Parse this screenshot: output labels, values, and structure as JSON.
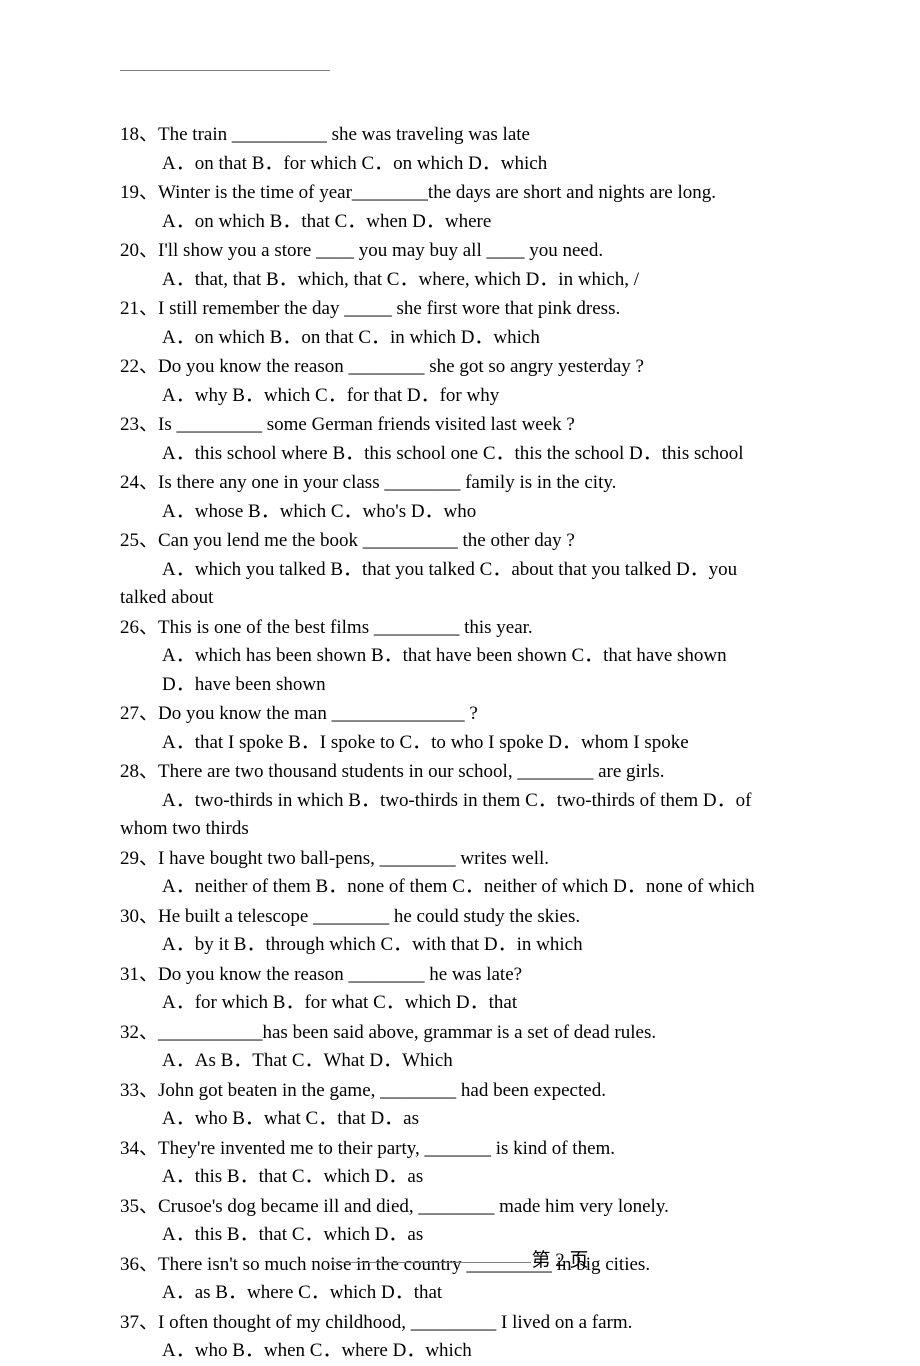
{
  "page_number_label": "第 2 页",
  "questions": [
    {
      "num": "18",
      "stem": "The train __________ she was traveling was late",
      "opts": "A．on that         B．for which     C．on which            D．which"
    },
    {
      "num": "19",
      "stem": "Winter is the time of year________the days are short and nights are long.",
      "opts": "A．on which          B．that           C．when         D．where"
    },
    {
      "num": "20",
      "stem": "I'll show you a store ____ you may buy all ____ you need.",
      "opts": "A．that, that      B．which, that        C．where, which          D．in which, /"
    },
    {
      "num": "21",
      "stem": "I still remember the day _____ she first wore that pink dress.",
      "opts": "A．on which          B．on that         C．in which         D．which"
    },
    {
      "num": "22",
      "stem": "Do you know the reason ________ she got so angry yesterday ?",
      "opts": "A．why           B．which         C．for that        D．for why"
    },
    {
      "num": "23",
      "stem": "Is _________ some German friends visited last week ?",
      "opts": "A．this school where      B．this school one    C．this the school    D．this school"
    },
    {
      "num": "24",
      "stem": "Is there any one in your class ________ family is in the city.",
      "opts": "A．whose          B．which         C．who's          D．who"
    },
    {
      "num": "25",
      "stem": "Can you lend me the book __________ the other day ?",
      "opts": "A．which you talked      B．that you talked   C．about that you talked     D．you",
      "wrap": "talked about"
    },
    {
      "num": "26",
      "stem": "This is one of the best films _________ this year.",
      "opts": "A．which has been shown      B．that have been shown    C．that have shown",
      "opts2": "D．have been shown"
    },
    {
      "num": "27",
      "stem": "Do you know the man ______________ ?",
      "opts": "A．that I spoke   B．I spoke to    C．to who I spoke      D．whom I spoke"
    },
    {
      "num": "28",
      "stem": "There are two thousand students in our school, ________ are girls.",
      "opts": "A．two-thirds in which    B．two-thirds in them    C．two-thirds of them      D．of",
      "wrap": "whom two thirds"
    },
    {
      "num": "29",
      "stem": "I have bought two ball-pens, ________ writes well.",
      "opts": "A．neither of them       B．none of them    C．neither of which D．none of which"
    },
    {
      "num": "30",
      "stem": "He built a telescope ________ he could study the skies.",
      "opts": "A．by it          B．through which          C．with that       D．in which"
    },
    {
      "num": "31",
      "stem": "Do you know the reason ________ he was late?",
      "opts": "A．for which     B．for what       C．which          D．that"
    },
    {
      "num": "32",
      "stem": "___________has been said above, grammar is a set of dead rules.",
      "opts": "A．As              B．That       C．What          D．Which"
    },
    {
      "num": "33",
      "stem": "John got beaten in the game, ________ had been expected.",
      "opts": "A．who            B．what           C．that              D．as"
    },
    {
      "num": "34",
      "stem": "They're invented me to their party, _______ is kind of them.",
      "opts": "A．this              B．that              C．which         D．as"
    },
    {
      "num": "35",
      "stem": "Crusoe's dog became ill and died, ________ made him very lonely.",
      "opts": "A．this              B．that              C．which         D．as"
    },
    {
      "num": "36",
      "stem": "There isn't so much noise in the country _________ in big cities.",
      "opts": "A．as                B．where          C．which         D．that"
    },
    {
      "num": "37",
      "stem": "I often thought of my childhood, _________ I lived on a farm.",
      "opts": "A．who            B．when           C．where         D．which"
    }
  ]
}
